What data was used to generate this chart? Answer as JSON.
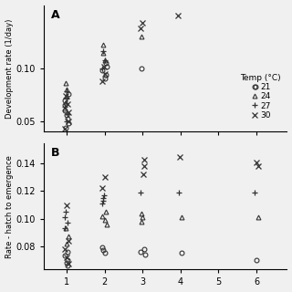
{
  "panel_A": {
    "ylabel": "Development rate (1/day)",
    "ylim": [
      0.04,
      0.16
    ],
    "yticks": [
      0.05,
      0.1
    ],
    "ytick_labels": [
      "0.05",
      "0.10"
    ],
    "data": {
      "21": {
        "x": [
          1,
          1,
          1,
          1,
          1,
          1,
          1,
          1,
          2,
          2,
          2,
          2,
          2,
          3,
          6
        ],
        "y": [
          0.044,
          0.048,
          0.052,
          0.056,
          0.06,
          0.065,
          0.07,
          0.076,
          0.09,
          0.094,
          0.098,
          0.102,
          0.105,
          0.1,
          0.083
        ]
      },
      "24": {
        "x": [
          1,
          1,
          1,
          1,
          1,
          2,
          2,
          2,
          3
        ],
        "y": [
          0.062,
          0.068,
          0.074,
          0.08,
          0.086,
          0.108,
          0.115,
          0.122,
          0.13
        ]
      },
      "27": {
        "x": [
          1,
          1,
          1,
          1,
          1,
          2,
          2,
          2
        ],
        "y": [
          0.05,
          0.057,
          0.064,
          0.071,
          0.078,
          0.1,
          0.108,
          0.116
        ]
      },
      "30": {
        "x": [
          1,
          1,
          1,
          1,
          1,
          2,
          2,
          2,
          3,
          3,
          4
        ],
        "y": [
          0.043,
          0.05,
          0.058,
          0.066,
          0.074,
          0.088,
          0.095,
          0.102,
          0.138,
          0.143,
          0.15
        ]
      }
    },
    "legend_title": "Temp (°C)",
    "legend_entries": [
      "21",
      "24",
      "27",
      "30"
    ]
  },
  "panel_B": {
    "ylabel": "Rate - hatch to emergence",
    "ylim": [
      0.063,
      0.155
    ],
    "yticks": [
      0.08,
      0.1,
      0.12,
      0.14
    ],
    "ytick_labels": [
      "0.08",
      "0.10",
      "0.12",
      "0.14"
    ],
    "data": {
      "21": {
        "x": [
          1,
          1,
          1,
          1,
          1,
          2,
          2,
          2,
          3,
          3,
          3,
          4,
          6
        ],
        "y": [
          0.066,
          0.068,
          0.07,
          0.073,
          0.076,
          0.075,
          0.077,
          0.079,
          0.074,
          0.076,
          0.078,
          0.075,
          0.07
        ]
      },
      "24": {
        "x": [
          1,
          1,
          1,
          2,
          2,
          2,
          2,
          3,
          3,
          3,
          4,
          6
        ],
        "y": [
          0.082,
          0.087,
          0.093,
          0.096,
          0.099,
          0.102,
          0.105,
          0.098,
          0.101,
          0.104,
          0.101,
          0.101
        ]
      },
      "27": {
        "x": [
          1,
          1,
          1,
          1,
          2,
          2,
          2,
          2,
          3,
          4,
          6
        ],
        "y": [
          0.093,
          0.097,
          0.101,
          0.105,
          0.111,
          0.113,
          0.115,
          0.117,
          0.119,
          0.119,
          0.119
        ]
      },
      "30": {
        "x": [
          1,
          1,
          1,
          1,
          1,
          2,
          2,
          3,
          3,
          3,
          4,
          6,
          6
        ],
        "y": [
          0.067,
          0.072,
          0.078,
          0.084,
          0.11,
          0.122,
          0.13,
          0.132,
          0.138,
          0.143,
          0.145,
          0.138,
          0.141
        ]
      }
    }
  },
  "marker_specs": {
    "21": {
      "marker": "o",
      "ms": 3.5,
      "mfc": "none",
      "mec": "#333333",
      "mew": 0.8
    },
    "24": {
      "marker": "^",
      "ms": 3.5,
      "mfc": "none",
      "mec": "#333333",
      "mew": 0.8
    },
    "27": {
      "marker": "+",
      "ms": 5.0,
      "mfc": "none",
      "mec": "#333333",
      "mew": 0.9
    },
    "30": {
      "marker": "x",
      "ms": 4.0,
      "mfc": "none",
      "mec": "#333333",
      "mew": 0.9
    }
  },
  "xlim": [
    0.4,
    6.8
  ],
  "xticks": [
    1,
    2,
    3,
    4,
    5,
    6
  ],
  "background_color": "#f0f0f0"
}
